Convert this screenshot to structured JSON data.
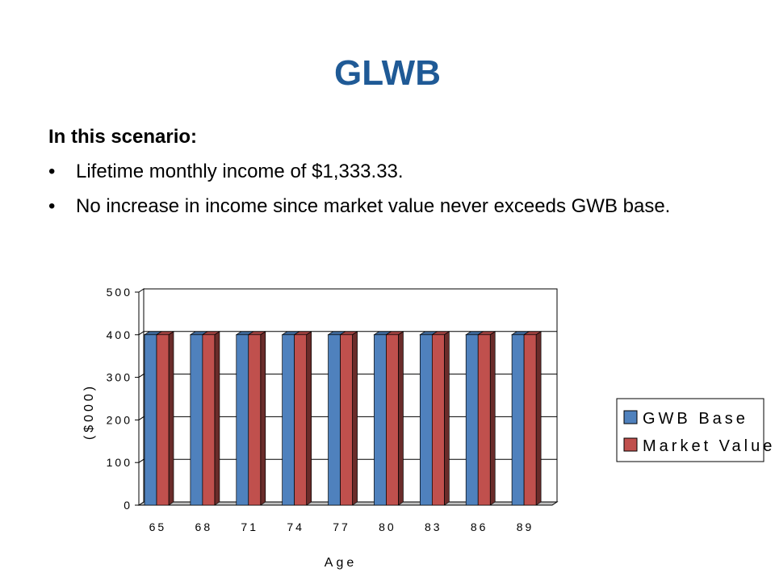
{
  "slide": {
    "title": "GLWB",
    "intro": "In this scenario:",
    "bullets": [
      {
        "text": "Lifetime monthly income of $1,333.33."
      },
      {
        "text": "No increase in income since market value never exceeds GWB base."
      }
    ]
  },
  "colors": {
    "title": "#1f5a96",
    "gwb_base": "#4f81bd",
    "market_value": "#c0504d"
  },
  "chart_data": {
    "type": "bar",
    "categories": [
      "65",
      "68",
      "71",
      "74",
      "77",
      "80",
      "83",
      "86",
      "89"
    ],
    "series": [
      {
        "name": "GWB Base",
        "values": [
          400,
          400,
          400,
          400,
          400,
          400,
          400,
          400,
          400
        ]
      },
      {
        "name": "Market Value",
        "values": [
          400,
          400,
          400,
          400,
          400,
          400,
          400,
          400,
          400
        ]
      }
    ],
    "y_ticks": [
      "0",
      "100",
      "200",
      "300",
      "400",
      "500"
    ],
    "ylim": [
      0,
      500
    ],
    "xlabel": "Age",
    "ylabel": "($000)",
    "legend_position": "right",
    "grid": true,
    "style": "3d-clustered-column"
  }
}
